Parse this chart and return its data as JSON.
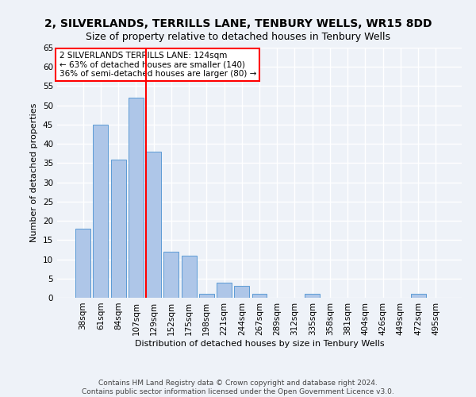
{
  "title": "2, SILVERLANDS, TERRILLS LANE, TENBURY WELLS, WR15 8DD",
  "subtitle": "Size of property relative to detached houses in Tenbury Wells",
  "xlabel": "Distribution of detached houses by size in Tenbury Wells",
  "ylabel": "Number of detached properties",
  "categories": [
    "38sqm",
    "61sqm",
    "84sqm",
    "107sqm",
    "129sqm",
    "152sqm",
    "175sqm",
    "198sqm",
    "221sqm",
    "244sqm",
    "267sqm",
    "289sqm",
    "312sqm",
    "335sqm",
    "358sqm",
    "381sqm",
    "404sqm",
    "426sqm",
    "449sqm",
    "472sqm",
    "495sqm"
  ],
  "values": [
    18,
    45,
    36,
    52,
    38,
    12,
    11,
    1,
    4,
    3,
    1,
    0,
    0,
    1,
    0,
    0,
    0,
    0,
    0,
    1,
    0
  ],
  "bar_color": "#aec6e8",
  "bar_edge_color": "#5b9bd5",
  "vline_x_index": 4,
  "vline_color": "red",
  "annotation_text": "2 SILVERLANDS TERRILLS LANE: 124sqm\n← 63% of detached houses are smaller (140)\n36% of semi-detached houses are larger (80) →",
  "annotation_box_color": "white",
  "annotation_box_edge_color": "red",
  "ylim": [
    0,
    65
  ],
  "yticks": [
    0,
    5,
    10,
    15,
    20,
    25,
    30,
    35,
    40,
    45,
    50,
    55,
    60,
    65
  ],
  "footer": "Contains HM Land Registry data © Crown copyright and database right 2024.\nContains public sector information licensed under the Open Government Licence v3.0.",
  "background_color": "#eef2f8",
  "grid_color": "#ffffff",
  "title_fontsize": 10,
  "subtitle_fontsize": 9,
  "axis_label_fontsize": 8,
  "tick_fontsize": 7.5,
  "annotation_fontsize": 7.5,
  "footer_fontsize": 6.5
}
